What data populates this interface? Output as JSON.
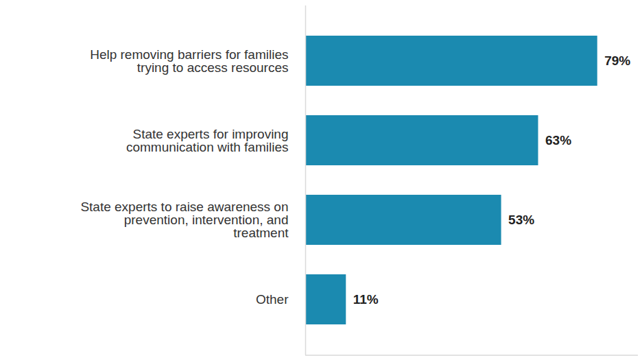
{
  "chart_data": {
    "type": "bar",
    "orientation": "horizontal",
    "categories": [
      "Help removing barriers for families trying to access resources",
      "State experts for improving communication with families",
      "State experts to raise awareness on prevention, intervention, and treatment",
      "Other"
    ],
    "values": [
      79,
      63,
      53,
      11
    ],
    "value_labels": [
      "79%",
      "63%",
      "53%",
      "11%"
    ],
    "color": "#1b8ab0",
    "xlim": [
      0,
      90
    ],
    "data_labels": true,
    "tick_labels": "y",
    "grid": false
  }
}
